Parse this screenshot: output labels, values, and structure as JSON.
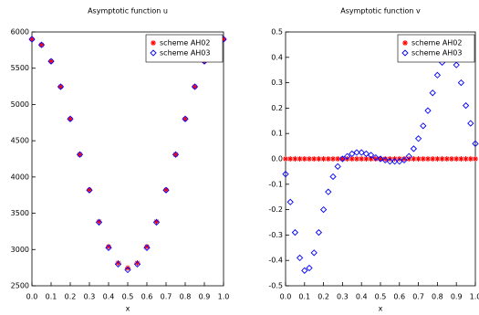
{
  "chart_data": [
    {
      "type": "scatter",
      "title": "Asymptotic function u",
      "x_label": "x",
      "x": [
        0,
        0.05,
        0.1,
        0.15,
        0.2,
        0.25,
        0.3,
        0.35,
        0.4,
        0.45,
        0.5,
        0.55,
        0.6,
        0.65,
        0.7,
        0.75,
        0.8,
        0.85,
        0.9,
        0.95,
        1
      ],
      "series": [
        {
          "name": "scheme AH02",
          "color": "#ff0000",
          "marker": "asterisk",
          "values": [
            5900,
            5822,
            5596,
            5245,
            4801,
            4310,
            3822,
            3385,
            3040,
            2815,
            2745,
            2815,
            3040,
            3385,
            3822,
            4310,
            4801,
            5245,
            5596,
            5822,
            5900
          ]
        },
        {
          "name": "scheme AH03",
          "color": "#0000ff",
          "marker": "diamond",
          "values": [
            5900,
            5822,
            5596,
            5245,
            4801,
            4310,
            3819,
            3375,
            3024,
            2798,
            2720,
            2798,
            3024,
            3375,
            3819,
            4310,
            4801,
            5245,
            5596,
            5822,
            5900
          ]
        }
      ],
      "xlim": [
        0,
        1
      ],
      "ylim": [
        2500,
        6000
      ],
      "xticks": [
        {
          "value": 0,
          "label": "0.0"
        },
        0.1,
        0.2,
        0.3,
        0.4,
        0.5,
        0.6,
        0.7,
        0.8,
        0.9,
        {
          "value": 1,
          "label": "1.0"
        }
      ],
      "yticks": [
        2500,
        3000,
        3500,
        4000,
        4500,
        5000,
        5500,
        6000
      ],
      "legend": "upper right"
    },
    {
      "type": "scatter",
      "title": "Asymptotic function v",
      "x_label": "x",
      "x": [
        0,
        0.025,
        0.05,
        0.075,
        0.1,
        0.125,
        0.15,
        0.175,
        0.2,
        0.225,
        0.25,
        0.275,
        0.3,
        0.325,
        0.35,
        0.375,
        0.4,
        0.425,
        0.45,
        0.475,
        0.5,
        0.525,
        0.55,
        0.575,
        0.6,
        0.625,
        0.65,
        0.675,
        0.7,
        0.725,
        0.75,
        0.775,
        0.8,
        0.825,
        0.85,
        0.875,
        0.9,
        0.925,
        0.95,
        0.975,
        1
      ],
      "series": [
        {
          "name": "scheme AH02",
          "color": "#ff0000",
          "marker": "asterisk",
          "values": [
            0,
            0,
            0,
            0,
            0,
            0,
            0,
            0,
            0,
            0,
            0,
            0,
            0,
            0,
            0,
            0,
            0,
            0,
            0,
            0,
            0,
            0,
            0,
            0,
            0,
            0,
            0,
            0,
            0,
            0,
            0,
            0,
            0,
            0,
            0,
            0,
            0,
            0,
            0,
            0,
            0
          ]
        },
        {
          "name": "scheme AH03",
          "color": "#0000ff",
          "marker": "diamond",
          "values": [
            -0.06,
            -0.17,
            -0.29,
            -0.39,
            -0.44,
            -0.43,
            -0.37,
            -0.29,
            -0.2,
            -0.13,
            -0.07,
            -0.03,
            0,
            0.01,
            0.02,
            0.025,
            0.025,
            0.02,
            0.015,
            0.005,
            0,
            -0.005,
            -0.01,
            -0.01,
            -0.01,
            -0.005,
            0.01,
            0.04,
            0.08,
            0.13,
            0.19,
            0.26,
            0.33,
            0.38,
            0.4,
            0.4,
            0.37,
            0.3,
            0.21,
            0.14,
            0.06
          ]
        }
      ],
      "xlim": [
        0,
        1
      ],
      "ylim": [
        -0.5,
        0.5
      ],
      "xticks": [
        {
          "value": 0,
          "label": "0.0"
        },
        0.1,
        0.2,
        0.3,
        0.4,
        0.5,
        0.6,
        0.7,
        0.8,
        0.9,
        {
          "value": 1,
          "label": "1.0"
        }
      ],
      "yticks": [
        -0.5,
        -0.4,
        -0.3,
        -0.2,
        -0.1,
        {
          "value": 0,
          "label": "0.0"
        },
        0.1,
        0.2,
        0.3,
        0.4,
        0.5
      ],
      "legend": "upper right"
    }
  ]
}
